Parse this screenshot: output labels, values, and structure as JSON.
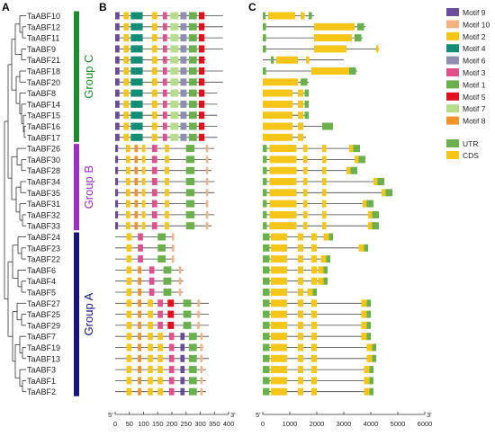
{
  "panels": {
    "a": "A",
    "b": "B",
    "c": "C"
  },
  "genes": [
    "TaABF10",
    "TaABF12",
    "TaABF11",
    "TaABF9",
    "TaABF21",
    "TaABF18",
    "TaABF20",
    "TaABF8",
    "TaABF14",
    "TaABF15",
    "TaABF16",
    "TaABF17",
    "TaABF26",
    "TaABF30",
    "TaABF28",
    "TaABF34",
    "TaABF35",
    "TaABF31",
    "TaABF32",
    "TaABF33",
    "TaABF24",
    "TaABF23",
    "TaABF22",
    "TaABF6",
    "TaABF4",
    "TaABF5",
    "TaABF27",
    "TaABF25",
    "TaABF29",
    "TaABF7",
    "TaABF19",
    "TaABF13",
    "TaABF3",
    "TaABF1",
    "TaABF2"
  ],
  "groups": [
    {
      "label": "Group C",
      "first": 0,
      "last": 11,
      "color": "#1f8a2e"
    },
    {
      "label": "Group B",
      "first": 12,
      "last": 19,
      "color": "#9b30c0"
    },
    {
      "label": "Group A",
      "first": 20,
      "last": 34,
      "color": "#16167a"
    }
  ],
  "motif_legend": [
    {
      "name": "Motif 9",
      "color": "#6b4c9a"
    },
    {
      "name": "Motif 10",
      "color": "#f4b183"
    },
    {
      "name": "Motif 2",
      "color": "#f5c518"
    },
    {
      "name": "Motif 4",
      "color": "#138d75"
    },
    {
      "name": "Motif 6",
      "color": "#8e8fb0"
    },
    {
      "name": "Motif 3",
      "color": "#e0508a"
    },
    {
      "name": "Motif 1",
      "color": "#6ab04c"
    },
    {
      "name": "Motif 5",
      "color": "#e0101e"
    },
    {
      "name": "Motif 7",
      "color": "#b5dd8a"
    },
    {
      "name": "Motif 8",
      "color": "#f0932b"
    }
  ],
  "structure_legend": [
    {
      "name": "UTR",
      "color": "#6ab04c"
    },
    {
      "name": "CDS",
      "color": "#f5c518"
    }
  ],
  "motif_axis": {
    "ticks": [
      0,
      50,
      100,
      150,
      200,
      250,
      300,
      350,
      400
    ],
    "end5": "5'",
    "end3": "3'"
  },
  "gene_axis": {
    "ticks": [
      0,
      1000,
      2000,
      3000,
      4000,
      5000,
      6000
    ],
    "end5": "5'",
    "end3": "3'"
  }
}
